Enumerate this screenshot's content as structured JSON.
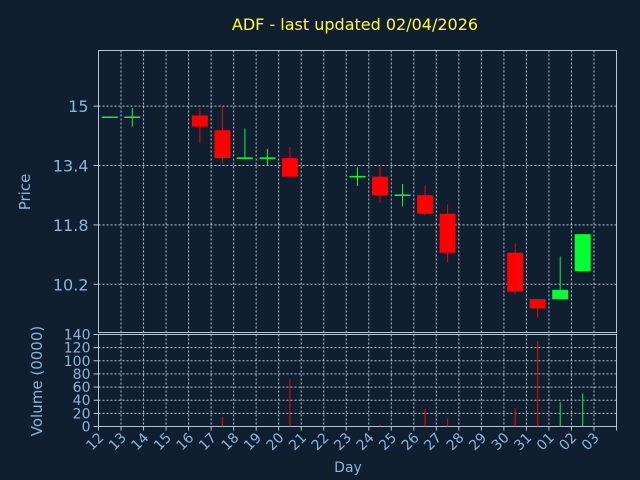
{
  "chart_data": [
    {
      "type": "candlestick",
      "title": "ADF - last updated 02/04/2026",
      "ylabel": "Price",
      "ylim": [
        8.9,
        16.5
      ],
      "yticks": [
        10.2,
        11.8,
        13.4,
        15
      ],
      "ytick_labels": [
        "10.2",
        "11.8",
        "13.4",
        "15"
      ],
      "grid": true,
      "up_color": "#00ff33",
      "down_color": "#ff0000",
      "candles": [
        {
          "day": "12",
          "open": 14.7,
          "high": 14.7,
          "low": 14.7,
          "close": 14.7
        },
        {
          "day": "13",
          "open": 14.7,
          "high": 14.95,
          "low": 14.45,
          "close": 14.7
        },
        {
          "day": "16",
          "open": 14.75,
          "high": 14.95,
          "low": 14.0,
          "close": 14.45
        },
        {
          "day": "17",
          "open": 14.35,
          "high": 15.0,
          "low": 13.45,
          "close": 13.6
        },
        {
          "day": "18",
          "open": 13.6,
          "high": 14.4,
          "low": 13.6,
          "close": 13.6
        },
        {
          "day": "19",
          "open": 13.6,
          "high": 13.85,
          "low": 13.4,
          "close": 13.6
        },
        {
          "day": "20",
          "open": 13.6,
          "high": 13.9,
          "low": 13.1,
          "close": 13.1
        },
        {
          "day": "23",
          "open": 13.1,
          "high": 13.35,
          "low": 12.85,
          "close": 13.1
        },
        {
          "day": "24",
          "open": 13.1,
          "high": 13.4,
          "low": 12.4,
          "close": 12.6
        },
        {
          "day": "25",
          "open": 12.6,
          "high": 12.9,
          "low": 12.3,
          "close": 12.6
        },
        {
          "day": "26",
          "open": 12.6,
          "high": 12.85,
          "low": 12.05,
          "close": 12.1
        },
        {
          "day": "27",
          "open": 12.1,
          "high": 12.35,
          "low": 10.8,
          "close": 11.05
        },
        {
          "day": "30",
          "open": 11.05,
          "high": 11.3,
          "low": 9.95,
          "close": 10.0
        },
        {
          "day": "31",
          "open": 9.8,
          "high": 9.8,
          "low": 9.3,
          "close": 9.55
        },
        {
          "day": "01",
          "open": 9.8,
          "high": 10.95,
          "low": 9.8,
          "close": 10.05
        },
        {
          "day": "02",
          "open": 10.55,
          "high": 11.55,
          "low": 10.55,
          "close": 11.55
        }
      ]
    },
    {
      "type": "bar",
      "xlabel": "Day",
      "ylabel": "Volume (0000)",
      "ylim": [
        0,
        140
      ],
      "yticks": [
        0,
        20,
        40,
        60,
        80,
        100,
        120,
        140
      ],
      "ytick_labels": [
        "0",
        "20",
        "40",
        "60",
        "80",
        "100",
        "120",
        "140"
      ],
      "grid": true,
      "categories": [
        "12",
        "13",
        "14",
        "15",
        "16",
        "17",
        "18",
        "19",
        "20",
        "21",
        "22",
        "23",
        "24",
        "25",
        "26",
        "27",
        "28",
        "29",
        "30",
        "31",
        "01",
        "02",
        "03"
      ],
      "bars": [
        {
          "day": "12",
          "value": 0,
          "color": "#00ff33"
        },
        {
          "day": "13",
          "value": 0,
          "color": "#00ff33"
        },
        {
          "day": "16",
          "value": 0,
          "color": "#ff0000"
        },
        {
          "day": "17",
          "value": 15,
          "color": "#ff0000"
        },
        {
          "day": "18",
          "value": 0,
          "color": "#00ff33"
        },
        {
          "day": "19",
          "value": 0,
          "color": "#00ff33"
        },
        {
          "day": "20",
          "value": 73,
          "color": "#ff0000"
        },
        {
          "day": "23",
          "value": 0,
          "color": "#00ff33"
        },
        {
          "day": "24",
          "value": 3,
          "color": "#ff0000"
        },
        {
          "day": "25",
          "value": 0,
          "color": "#00ff33"
        },
        {
          "day": "26",
          "value": 27,
          "color": "#ff0000"
        },
        {
          "day": "27",
          "value": 12,
          "color": "#ff0000"
        },
        {
          "day": "30",
          "value": 28,
          "color": "#ff0000"
        },
        {
          "day": "31",
          "value": 130,
          "color": "#ff0000"
        },
        {
          "day": "01",
          "value": 37,
          "color": "#00ff33"
        },
        {
          "day": "02",
          "value": 50,
          "color": "#00ff33"
        }
      ]
    }
  ]
}
